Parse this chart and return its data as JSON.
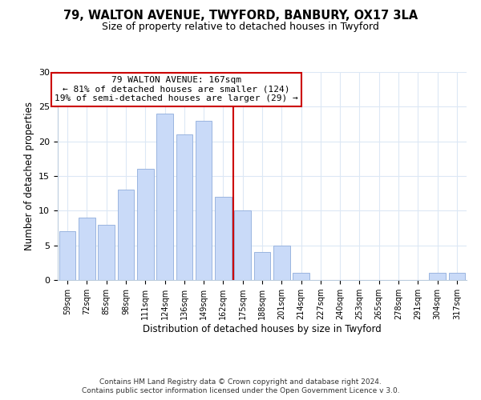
{
  "title1": "79, WALTON AVENUE, TWYFORD, BANBURY, OX17 3LA",
  "title2": "Size of property relative to detached houses in Twyford",
  "xlabel": "Distribution of detached houses by size in Twyford",
  "ylabel": "Number of detached properties",
  "bar_labels": [
    "59sqm",
    "72sqm",
    "85sqm",
    "98sqm",
    "111sqm",
    "124sqm",
    "136sqm",
    "149sqm",
    "162sqm",
    "175sqm",
    "188sqm",
    "201sqm",
    "214sqm",
    "227sqm",
    "240sqm",
    "253sqm",
    "265sqm",
    "278sqm",
    "291sqm",
    "304sqm",
    "317sqm"
  ],
  "bar_values": [
    7,
    9,
    8,
    13,
    16,
    24,
    21,
    23,
    12,
    10,
    4,
    5,
    1,
    0,
    0,
    0,
    0,
    0,
    0,
    1,
    1
  ],
  "bar_color": "#c9daf8",
  "bar_edgecolor": "#9ab5e0",
  "highlight_index": 8,
  "highlight_line_color": "#cc0000",
  "annotation_line1": "79 WALTON AVENUE: 167sqm",
  "annotation_line2": "← 81% of detached houses are smaller (124)",
  "annotation_line3": "19% of semi-detached houses are larger (29) →",
  "annotation_box_facecolor": "#ffffff",
  "annotation_box_edgecolor": "#cc0000",
  "ylim": [
    0,
    30
  ],
  "yticks": [
    0,
    5,
    10,
    15,
    20,
    25,
    30
  ],
  "footnote1": "Contains HM Land Registry data © Crown copyright and database right 2024.",
  "footnote2": "Contains public sector information licensed under the Open Government Licence v 3.0.",
  "bg_color": "#ffffff",
  "grid_color": "#dce8f5",
  "title1_fontsize": 10.5,
  "title2_fontsize": 9,
  "annotation_fontsize": 8,
  "footnote_fontsize": 6.5
}
